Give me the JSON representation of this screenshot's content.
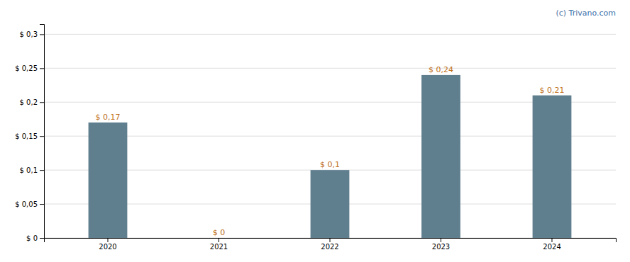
{
  "chart_data": {
    "type": "bar",
    "categories": [
      "2020",
      "2021",
      "2022",
      "2023",
      "2024"
    ],
    "values": [
      0.17,
      0.0,
      0.1,
      0.24,
      0.21
    ],
    "value_labels": [
      "$ 0,17",
      "$ 0",
      "$ 0,1",
      "$ 0,24",
      "$ 0,21"
    ],
    "data_labels": true,
    "color": "#5f7f8f",
    "ylim": [
      0,
      0.315
    ],
    "yticks": [
      {
        "value": 0.0,
        "label": "$ 0"
      },
      {
        "value": 0.05,
        "label": "$ 0,05"
      },
      {
        "value": 0.1,
        "label": "$ 0,1"
      },
      {
        "value": 0.15,
        "label": "$ 0,15"
      },
      {
        "value": 0.2,
        "label": "$ 0,2"
      },
      {
        "value": 0.25,
        "label": "$ 0,25"
      },
      {
        "value": 0.3,
        "label": "$ 0,3"
      }
    ],
    "grid": true,
    "annotations": [
      "(c) Trivano.com"
    ]
  }
}
